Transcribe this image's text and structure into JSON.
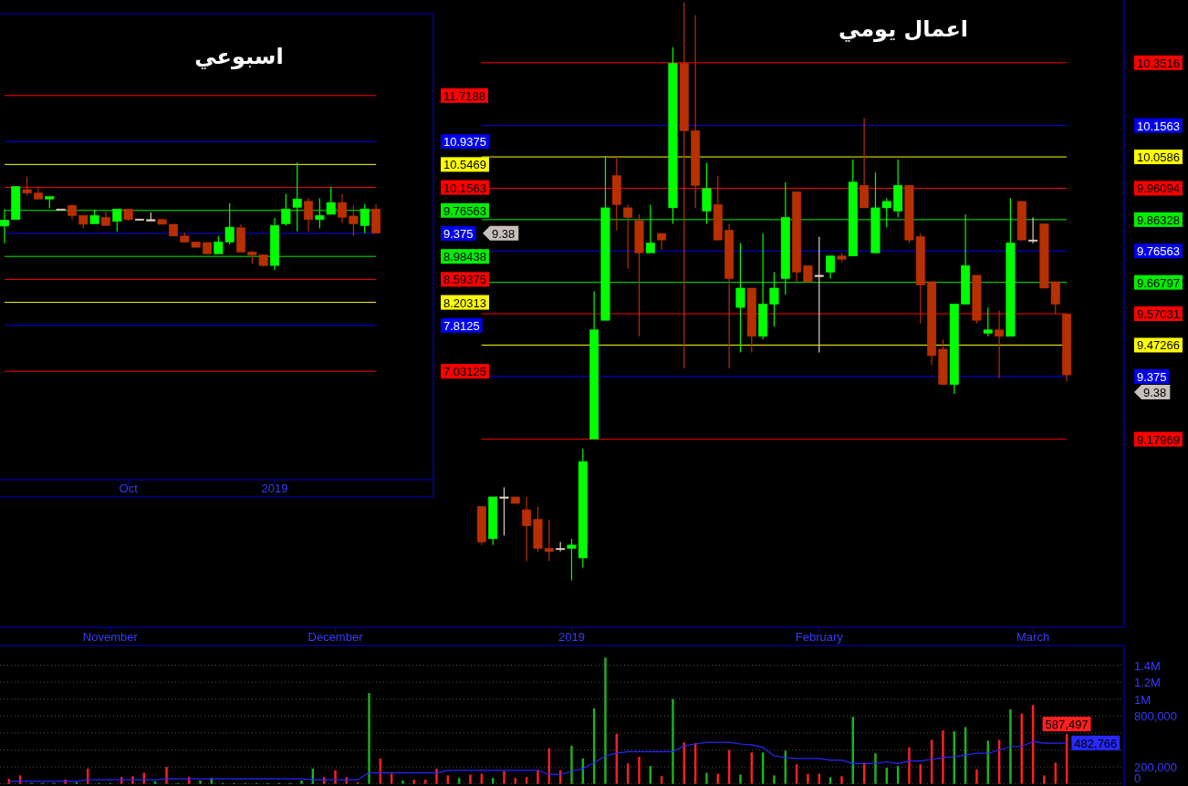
{
  "chart_data": [
    {
      "type": "candlestick",
      "title": "اسبوعي",
      "categories": [
        null,
        null,
        null,
        null,
        null,
        null,
        null,
        null,
        null,
        null,
        null,
        "Oct",
        null,
        null,
        null,
        null,
        null,
        null,
        null,
        null,
        null,
        null,
        null,
        null,
        "2019",
        null,
        null,
        null,
        null,
        null,
        null,
        null,
        null,
        null
      ],
      "ohlc": [
        [
          9.5,
          9.78,
          9.21,
          9.6
        ],
        [
          9.61,
          10.17,
          9.61,
          10.17
        ],
        [
          10.12,
          10.34,
          10.02,
          10.06
        ],
        [
          10.06,
          10.18,
          9.96,
          9.96
        ],
        [
          9.96,
          10.0,
          9.8,
          10.0
        ],
        [
          9.79,
          9.79,
          9.79,
          9.79
        ],
        [
          9.85,
          9.87,
          9.61,
          9.68
        ],
        [
          9.68,
          9.68,
          9.46,
          9.53
        ],
        [
          9.54,
          9.78,
          9.54,
          9.68
        ],
        [
          9.65,
          9.75,
          9.51,
          9.51
        ],
        [
          9.58,
          9.79,
          9.41,
          9.79
        ],
        [
          9.79,
          9.79,
          9.59,
          9.61
        ],
        [
          9.62,
          9.62,
          9.62,
          9.62
        ],
        [
          9.61,
          9.73,
          9.6,
          9.61
        ],
        [
          9.61,
          9.62,
          9.53,
          9.53
        ],
        [
          9.53,
          9.53,
          9.33,
          9.33
        ],
        [
          9.33,
          9.39,
          9.23,
          9.23
        ],
        [
          9.23,
          9.23,
          9.14,
          9.14
        ],
        [
          9.22,
          9.22,
          9.03,
          9.03
        ],
        [
          9.03,
          9.33,
          9.03,
          9.23
        ],
        [
          9.23,
          9.89,
          9.19,
          9.48
        ],
        [
          9.47,
          9.53,
          9.06,
          9.06
        ],
        [
          9.06,
          9.08,
          8.86,
          9.01
        ],
        [
          9.01,
          9.02,
          8.81,
          8.83
        ],
        [
          8.83,
          9.64,
          8.75,
          9.51
        ],
        [
          9.54,
          10.05,
          9.51,
          9.79
        ],
        [
          9.82,
          10.58,
          9.41,
          9.96
        ],
        [
          9.92,
          9.98,
          9.41,
          9.61
        ],
        [
          9.61,
          9.97,
          9.46,
          9.68
        ],
        [
          9.7,
          10.17,
          9.7,
          9.9
        ],
        [
          9.9,
          10.04,
          9.55,
          9.65
        ],
        [
          9.67,
          9.85,
          9.33,
          9.54
        ],
        [
          9.51,
          9.87,
          9.38,
          9.79
        ],
        [
          9.79,
          9.87,
          9.38,
          9.38
        ]
      ],
      "colors": [
        "#00ff00",
        "#00ff00",
        "#b83000",
        "#b83000",
        "#00ff00",
        "#e0d0c0",
        "#b83000",
        "#b83000",
        "#00ff00",
        "#b83000",
        "#00ff00",
        "#b83000",
        "#e0d0c0",
        "#e0d0c0",
        "#b83000",
        "#b83000",
        "#b83000",
        "#b83000",
        "#b83000",
        "#00ff00",
        "#00ff00",
        "#b83000",
        "#b83000",
        "#b83000",
        "#00ff00",
        "#00ff00",
        "#00ff00",
        "#b83000",
        "#00ff00",
        "#00ff00",
        "#b83000",
        "#b83000",
        "#00ff00",
        "#b83000"
      ],
      "ylim": [
        5.19,
        13.11
      ],
      "yticks": [
        11.7188,
        10.9375,
        10.5469,
        10.1563,
        9.76563,
        9.375,
        8.98438,
        8.59375,
        8.20313,
        7.8125,
        7.03125
      ],
      "ref_lines": [
        {
          "axis": "y",
          "value": 11.7188,
          "color": "#ff0000"
        },
        {
          "axis": "y",
          "value": 10.9375,
          "color": "#0000ee"
        },
        {
          "axis": "y",
          "value": 10.5469,
          "color": "#ffff00"
        },
        {
          "axis": "y",
          "value": 10.1563,
          "color": "#ff0000"
        },
        {
          "axis": "y",
          "value": 9.76563,
          "color": "#00ee00"
        },
        {
          "axis": "y",
          "value": 9.375,
          "color": "#0000ee"
        },
        {
          "axis": "y",
          "value": 8.98438,
          "color": "#00ee00"
        },
        {
          "axis": "y",
          "value": 8.59375,
          "color": "#ff0000"
        },
        {
          "axis": "y",
          "value": 8.20313,
          "color": "#ffff00"
        },
        {
          "axis": "y",
          "value": 7.8125,
          "color": "#0000ee"
        },
        {
          "axis": "y",
          "value": 7.03125,
          "color": "#ff0000"
        }
      ],
      "annotations": [
        "9.38"
      ]
    },
    {
      "type": "candlestick",
      "title": "اعمال يومي",
      "categories": [
        null,
        null,
        null,
        null,
        null,
        null,
        null,
        null,
        null,
        "November",
        null,
        null,
        null,
        null,
        null,
        null,
        null,
        null,
        null,
        null,
        null,
        null,
        null,
        null,
        null,
        null,
        null,
        null,
        null,
        "December",
        null,
        null,
        null,
        null,
        null,
        null,
        null,
        null,
        null,
        null,
        null,
        null,
        null,
        null,
        null,
        null,
        null,
        null,
        null,
        null,
        "2019",
        null,
        null,
        null,
        null,
        null,
        null,
        null,
        null,
        null,
        null,
        null,
        null,
        null,
        null,
        null,
        null,
        null,
        null,
        null,
        null,
        null,
        "February",
        null,
        null,
        null,
        null,
        null,
        null,
        null,
        null,
        null,
        null,
        null,
        null,
        null,
        null,
        null,
        null,
        null,
        null,
        "March",
        null,
        null,
        null
      ],
      "ohlc": [
        null,
        null,
        null,
        null,
        null,
        null,
        null,
        null,
        null,
        null,
        null,
        null,
        null,
        null,
        null,
        null,
        null,
        null,
        null,
        null,
        null,
        null,
        null,
        null,
        null,
        null,
        null,
        null,
        null,
        null,
        null,
        null,
        null,
        null,
        null,
        null,
        null,
        null,
        null,
        null,
        null,
        null,
        [
          8.97,
          8.97,
          8.85,
          8.86
        ],
        [
          8.87,
          9.0,
          8.85,
          9.0
        ],
        [
          9.0,
          9.03,
          8.88,
          9.0
        ],
        [
          9.0,
          9.0,
          8.98,
          8.98
        ],
        [
          8.96,
          9.0,
          8.8,
          8.91
        ],
        [
          8.93,
          8.97,
          8.83,
          8.84
        ],
        [
          8.84,
          8.93,
          8.8,
          8.83
        ],
        [
          8.84,
          8.86,
          8.83,
          8.84
        ],
        [
          8.84,
          8.87,
          8.74,
          8.85
        ],
        [
          8.81,
          9.15,
          8.78,
          9.11
        ],
        [
          9.18,
          9.64,
          9.18,
          9.52
        ],
        [
          9.55,
          10.06,
          9.55,
          9.9
        ],
        [
          10.0,
          10.06,
          9.83,
          9.91
        ],
        [
          9.9,
          9.91,
          9.71,
          9.87
        ],
        [
          9.86,
          9.88,
          9.5,
          9.76
        ],
        [
          9.76,
          9.91,
          9.76,
          9.79
        ],
        [
          9.82,
          9.82,
          9.77,
          9.8
        ],
        [
          9.9,
          10.4,
          9.85,
          10.35
        ],
        [
          10.35,
          10.54,
          9.4,
          10.14
        ],
        [
          10.14,
          10.5,
          9.9,
          9.97
        ],
        [
          9.89,
          10.04,
          9.85,
          9.96
        ],
        [
          9.91,
          10.0,
          9.8,
          9.8
        ],
        [
          9.83,
          9.85,
          9.4,
          9.68
        ],
        [
          9.59,
          9.79,
          9.45,
          9.65
        ],
        [
          9.65,
          9.65,
          9.45,
          9.5
        ],
        [
          9.5,
          9.82,
          9.49,
          9.6
        ],
        [
          9.6,
          9.7,
          9.53,
          9.65
        ],
        [
          9.68,
          9.98,
          9.63,
          9.87
        ],
        [
          9.95,
          9.95,
          9.67,
          9.7
        ],
        [
          9.72,
          9.72,
          9.67,
          9.67
        ],
        [
          9.69,
          9.81,
          9.45,
          9.69
        ],
        [
          9.7,
          9.75,
          9.68,
          9.75
        ],
        [
          9.75,
          9.76,
          9.73,
          9.74
        ],
        [
          9.75,
          10.05,
          9.75,
          9.98
        ],
        [
          9.97,
          10.18,
          9.9,
          9.9
        ],
        [
          9.76,
          10.01,
          9.76,
          9.9
        ],
        [
          9.9,
          9.93,
          9.84,
          9.92
        ],
        [
          9.89,
          10.05,
          9.87,
          9.97
        ],
        [
          9.97,
          9.97,
          9.79,
          9.8
        ],
        [
          9.81,
          9.82,
          9.54,
          9.66
        ],
        [
          9.67,
          9.67,
          9.41,
          9.44
        ],
        [
          9.46,
          9.49,
          9.35,
          9.35
        ],
        [
          9.35,
          9.6,
          9.32,
          9.6
        ],
        [
          9.6,
          9.88,
          9.6,
          9.72
        ],
        [
          9.69,
          9.69,
          9.54,
          9.55
        ],
        [
          9.51,
          9.59,
          9.5,
          9.52
        ],
        [
          9.52,
          9.58,
          9.37,
          9.5
        ],
        [
          9.5,
          9.93,
          9.5,
          9.79
        ],
        [
          9.92,
          9.92,
          9.8,
          9.8
        ],
        [
          9.8,
          9.87,
          9.79,
          9.8
        ],
        [
          9.85,
          9.85,
          9.65,
          9.65
        ],
        [
          9.67,
          9.67,
          9.57,
          9.6
        ],
        [
          9.57,
          9.57,
          9.36,
          9.38
        ]
      ],
      "colors": [
        null,
        null,
        null,
        null,
        null,
        null,
        null,
        null,
        null,
        null,
        null,
        null,
        null,
        null,
        null,
        null,
        null,
        null,
        null,
        null,
        null,
        null,
        null,
        null,
        null,
        null,
        null,
        null,
        null,
        null,
        null,
        null,
        null,
        null,
        null,
        null,
        null,
        null,
        null,
        null,
        null,
        null,
        "#b83000",
        "#00ff00",
        "#e0d0c0",
        "#b83000",
        "#b83000",
        "#b83000",
        "#b83000",
        "#e0d0c0",
        "#00ff00",
        "#00ff00",
        "#00ff00",
        "#00ff00",
        "#b83000",
        "#b83000",
        "#b83000",
        "#00ff00",
        "#b83000",
        "#00ff00",
        "#b83000",
        "#b83000",
        "#00ff00",
        "#b83000",
        "#b83000",
        "#00ff00",
        "#b83000",
        "#00ff00",
        "#00ff00",
        "#00ff00",
        "#b83000",
        "#b83000",
        "#e0d0c0",
        "#00ff00",
        "#b83000",
        "#00ff00",
        "#b83000",
        "#00ff00",
        "#00ff00",
        "#00ff00",
        "#b83000",
        "#b83000",
        "#b83000",
        "#b83000",
        "#00ff00",
        "#00ff00",
        "#b83000",
        "#00ff00",
        "#b83000",
        "#00ff00",
        "#b83000",
        "#e0d0c0",
        "#b83000",
        "#b83000",
        "#b83000"
      ],
      "ylim": [
        8.594,
        10.547
      ],
      "yticks": [
        10.3516,
        10.1563,
        10.0586,
        9.96094,
        9.86328,
        9.76563,
        9.66797,
        9.57031,
        9.47266,
        9.375,
        9.17969
      ],
      "ref_lines": [
        {
          "axis": "y",
          "value": 10.3516,
          "color": "#ff0000"
        },
        {
          "axis": "y",
          "value": 10.1563,
          "color": "#0000ee"
        },
        {
          "axis": "y",
          "value": 10.0586,
          "color": "#ffff00"
        },
        {
          "axis": "y",
          "value": 9.96094,
          "color": "#ff0000"
        },
        {
          "axis": "y",
          "value": 9.86328,
          "color": "#00ee00"
        },
        {
          "axis": "y",
          "value": 9.76563,
          "color": "#0000ee"
        },
        {
          "axis": "y",
          "value": 9.66797,
          "color": "#00ee00"
        },
        {
          "axis": "y",
          "value": 9.57031,
          "color": "#ff0000"
        },
        {
          "axis": "y",
          "value": 9.47266,
          "color": "#ffff00"
        },
        {
          "axis": "y",
          "value": 9.375,
          "color": "#0000ee"
        },
        {
          "axis": "y",
          "value": 9.17969,
          "color": "#ff0000"
        }
      ],
      "annotations": [
        "9.38"
      ]
    },
    {
      "type": "bar",
      "categories": [
        null,
        null,
        null,
        null,
        null,
        null,
        null,
        null,
        null,
        null,
        null,
        null,
        null,
        null,
        null,
        null,
        null,
        null,
        null,
        null,
        null,
        null,
        null,
        null,
        null,
        null,
        null,
        null,
        null,
        null,
        null,
        null,
        null,
        null,
        null,
        null,
        null,
        null,
        null,
        null,
        null,
        null,
        null,
        null,
        null,
        null,
        null,
        null,
        null,
        null,
        null,
        null,
        null,
        null,
        null,
        null,
        null,
        null,
        null,
        null,
        null,
        null,
        null,
        null,
        null,
        null,
        null,
        null,
        null,
        null,
        null,
        null,
        null,
        null,
        null,
        null,
        null,
        null,
        null,
        null,
        null,
        null,
        null,
        null,
        null,
        null,
        null,
        null,
        null,
        null,
        null,
        null,
        null,
        null,
        null
      ],
      "ylim": [
        -25000,
        1610000
      ],
      "yticks": [
        {
          "value": 0,
          "label": "0"
        },
        {
          "value": 200000,
          "label": "200,000"
        },
        {
          "value": 400000,
          "label": null
        },
        {
          "value": 600000,
          "label": null
        },
        {
          "value": 800000,
          "label": "800,000"
        },
        {
          "value": 1000000,
          "label": "1M"
        },
        {
          "value": 1200000,
          "label": "1.2M"
        },
        {
          "value": 1400000,
          "label": "1.4M"
        }
      ],
      "grid": "y",
      "series": [
        {
          "values": [
            60000,
            100000,
            10000,
            10000,
            10000,
            50000,
            20000,
            180000,
            10000,
            10000,
            80000,
            90000,
            130000,
            30000,
            200000,
            10000,
            80000,
            40000,
            70000,
            10000,
            10000,
            10000,
            10000,
            10000,
            10000,
            10000,
            40000,
            180000,
            80000,
            160000,
            80000,
            20000,
            1070000,
            300000,
            120000,
            40000,
            50000,
            50000,
            180000,
            100000,
            70000,
            110000,
            120000,
            70000,
            150000,
            70000,
            80000,
            160000,
            420000,
            160000,
            450000,
            300000,
            890000,
            1490000,
            590000,
            240000,
            320000,
            210000,
            90000,
            1000000,
            490000,
            480000,
            130000,
            120000,
            400000,
            110000,
            370000,
            370000,
            100000,
            390000,
            230000,
            120000,
            120000,
            80000,
            90000,
            790000,
            250000,
            360000,
            190000,
            210000,
            430000,
            230000,
            520000,
            630000,
            620000,
            670000,
            170000,
            510000,
            520000,
            880000,
            830000,
            930000,
            100000,
            250000,
            587497
          ],
          "colors": [
            "#ff2020",
            "#ff2020",
            "#20b020",
            "#20b020",
            "#20b020",
            "#ff2020",
            "#20b020",
            "#ff2020",
            "#20b020",
            "#20b020",
            "#ff2020",
            "#ff2020",
            "#ff2020",
            "#20b020",
            "#ff2020",
            "#20b020",
            "#ff2020",
            "#20b020",
            "#20b020",
            "#20b020",
            "#20b020",
            "#20b020",
            "#20b020",
            "#20b020",
            "#20b020",
            "#20b020",
            "#20b020",
            "#20b020",
            "#ff2020",
            "#ff2020",
            "#ff2020",
            "#ff2020",
            "#20b020",
            "#ff2020",
            "#ff2020",
            "#20b020",
            "#ff2020",
            "#ff2020",
            "#ff2020",
            "#ff2020",
            "#20b020",
            "#ff2020",
            "#ff2020",
            "#20b020",
            "#ff2020",
            "#ff2020",
            "#ff2020",
            "#ff2020",
            "#ff2020",
            "#ff2020",
            "#20b020",
            "#20b020",
            "#20b020",
            "#20b020",
            "#ff2020",
            "#ff2020",
            "#ff2020",
            "#20b020",
            "#ff2020",
            "#20b020",
            "#ff2020",
            "#ff2020",
            "#20b020",
            "#ff2020",
            "#ff2020",
            "#20b020",
            "#ff2020",
            "#20b020",
            "#20b020",
            "#20b020",
            "#ff2020",
            "#ff2020",
            "#ff2020",
            "#20b020",
            "#ff2020",
            "#20b020",
            "#ff2020",
            "#20b020",
            "#20b020",
            "#20b020",
            "#ff2020",
            "#ff2020",
            "#ff2020",
            "#ff2020",
            "#20b020",
            "#20b020",
            "#ff2020",
            "#20b020",
            "#ff2020",
            "#20b020",
            "#ff2020",
            "#ff2020",
            "#ff2020",
            "#ff2020",
            "#ff2020"
          ],
          "value_labels": [
            null,
            null,
            null,
            null,
            null,
            null,
            null,
            null,
            null,
            null,
            null,
            null,
            null,
            null,
            null,
            null,
            null,
            null,
            null,
            null,
            null,
            null,
            null,
            null,
            null,
            null,
            null,
            null,
            null,
            null,
            null,
            null,
            null,
            null,
            null,
            null,
            null,
            null,
            null,
            null,
            null,
            null,
            null,
            null,
            null,
            null,
            null,
            null,
            null,
            null,
            null,
            null,
            null,
            null,
            null,
            null,
            null,
            null,
            null,
            null,
            null,
            null,
            null,
            null,
            null,
            null,
            null,
            null,
            null,
            null,
            null,
            null,
            null,
            null,
            null,
            null,
            null,
            null,
            null,
            null,
            null,
            null,
            null,
            null,
            null,
            null,
            null,
            null,
            null,
            null,
            null,
            null,
            null,
            null,
            "587,497"
          ]
        },
        {
          "type": "line",
          "color": "#2828ff",
          "values": [
            30000,
            30000,
            30000,
            30000,
            30000,
            30000,
            30000,
            50000,
            50000,
            50000,
            50000,
            50000,
            50000,
            50000,
            60000,
            60000,
            60000,
            60000,
            60000,
            60000,
            60000,
            60000,
            60000,
            60000,
            60000,
            60000,
            60000,
            50000,
            50000,
            50000,
            50000,
            50000,
            130000,
            130000,
            130000,
            130000,
            130000,
            130000,
            130000,
            160000,
            160000,
            160000,
            160000,
            160000,
            160000,
            160000,
            160000,
            160000,
            110000,
            110000,
            150000,
            180000,
            250000,
            330000,
            360000,
            380000,
            380000,
            380000,
            380000,
            380000,
            450000,
            470000,
            490000,
            490000,
            490000,
            470000,
            460000,
            430000,
            330000,
            310000,
            300000,
            300000,
            300000,
            280000,
            280000,
            240000,
            240000,
            240000,
            260000,
            240000,
            270000,
            270000,
            290000,
            310000,
            320000,
            340000,
            360000,
            360000,
            400000,
            440000,
            440000,
            500000,
            480000,
            480000,
            482766
          ],
          "value_labels": [
            null,
            null,
            null,
            null,
            null,
            null,
            null,
            null,
            null,
            null,
            null,
            null,
            null,
            null,
            null,
            null,
            null,
            null,
            null,
            null,
            null,
            null,
            null,
            null,
            null,
            null,
            null,
            null,
            null,
            null,
            null,
            null,
            null,
            null,
            null,
            null,
            null,
            null,
            null,
            null,
            null,
            null,
            null,
            null,
            null,
            null,
            null,
            null,
            null,
            null,
            null,
            null,
            null,
            null,
            null,
            null,
            null,
            null,
            null,
            null,
            null,
            null,
            null,
            null,
            null,
            null,
            null,
            null,
            null,
            null,
            null,
            null,
            null,
            null,
            null,
            null,
            null,
            null,
            null,
            null,
            null,
            null,
            null,
            null,
            null,
            null,
            null,
            null,
            null,
            null,
            null,
            null,
            null,
            null,
            "482,766"
          ]
        }
      ]
    }
  ]
}
